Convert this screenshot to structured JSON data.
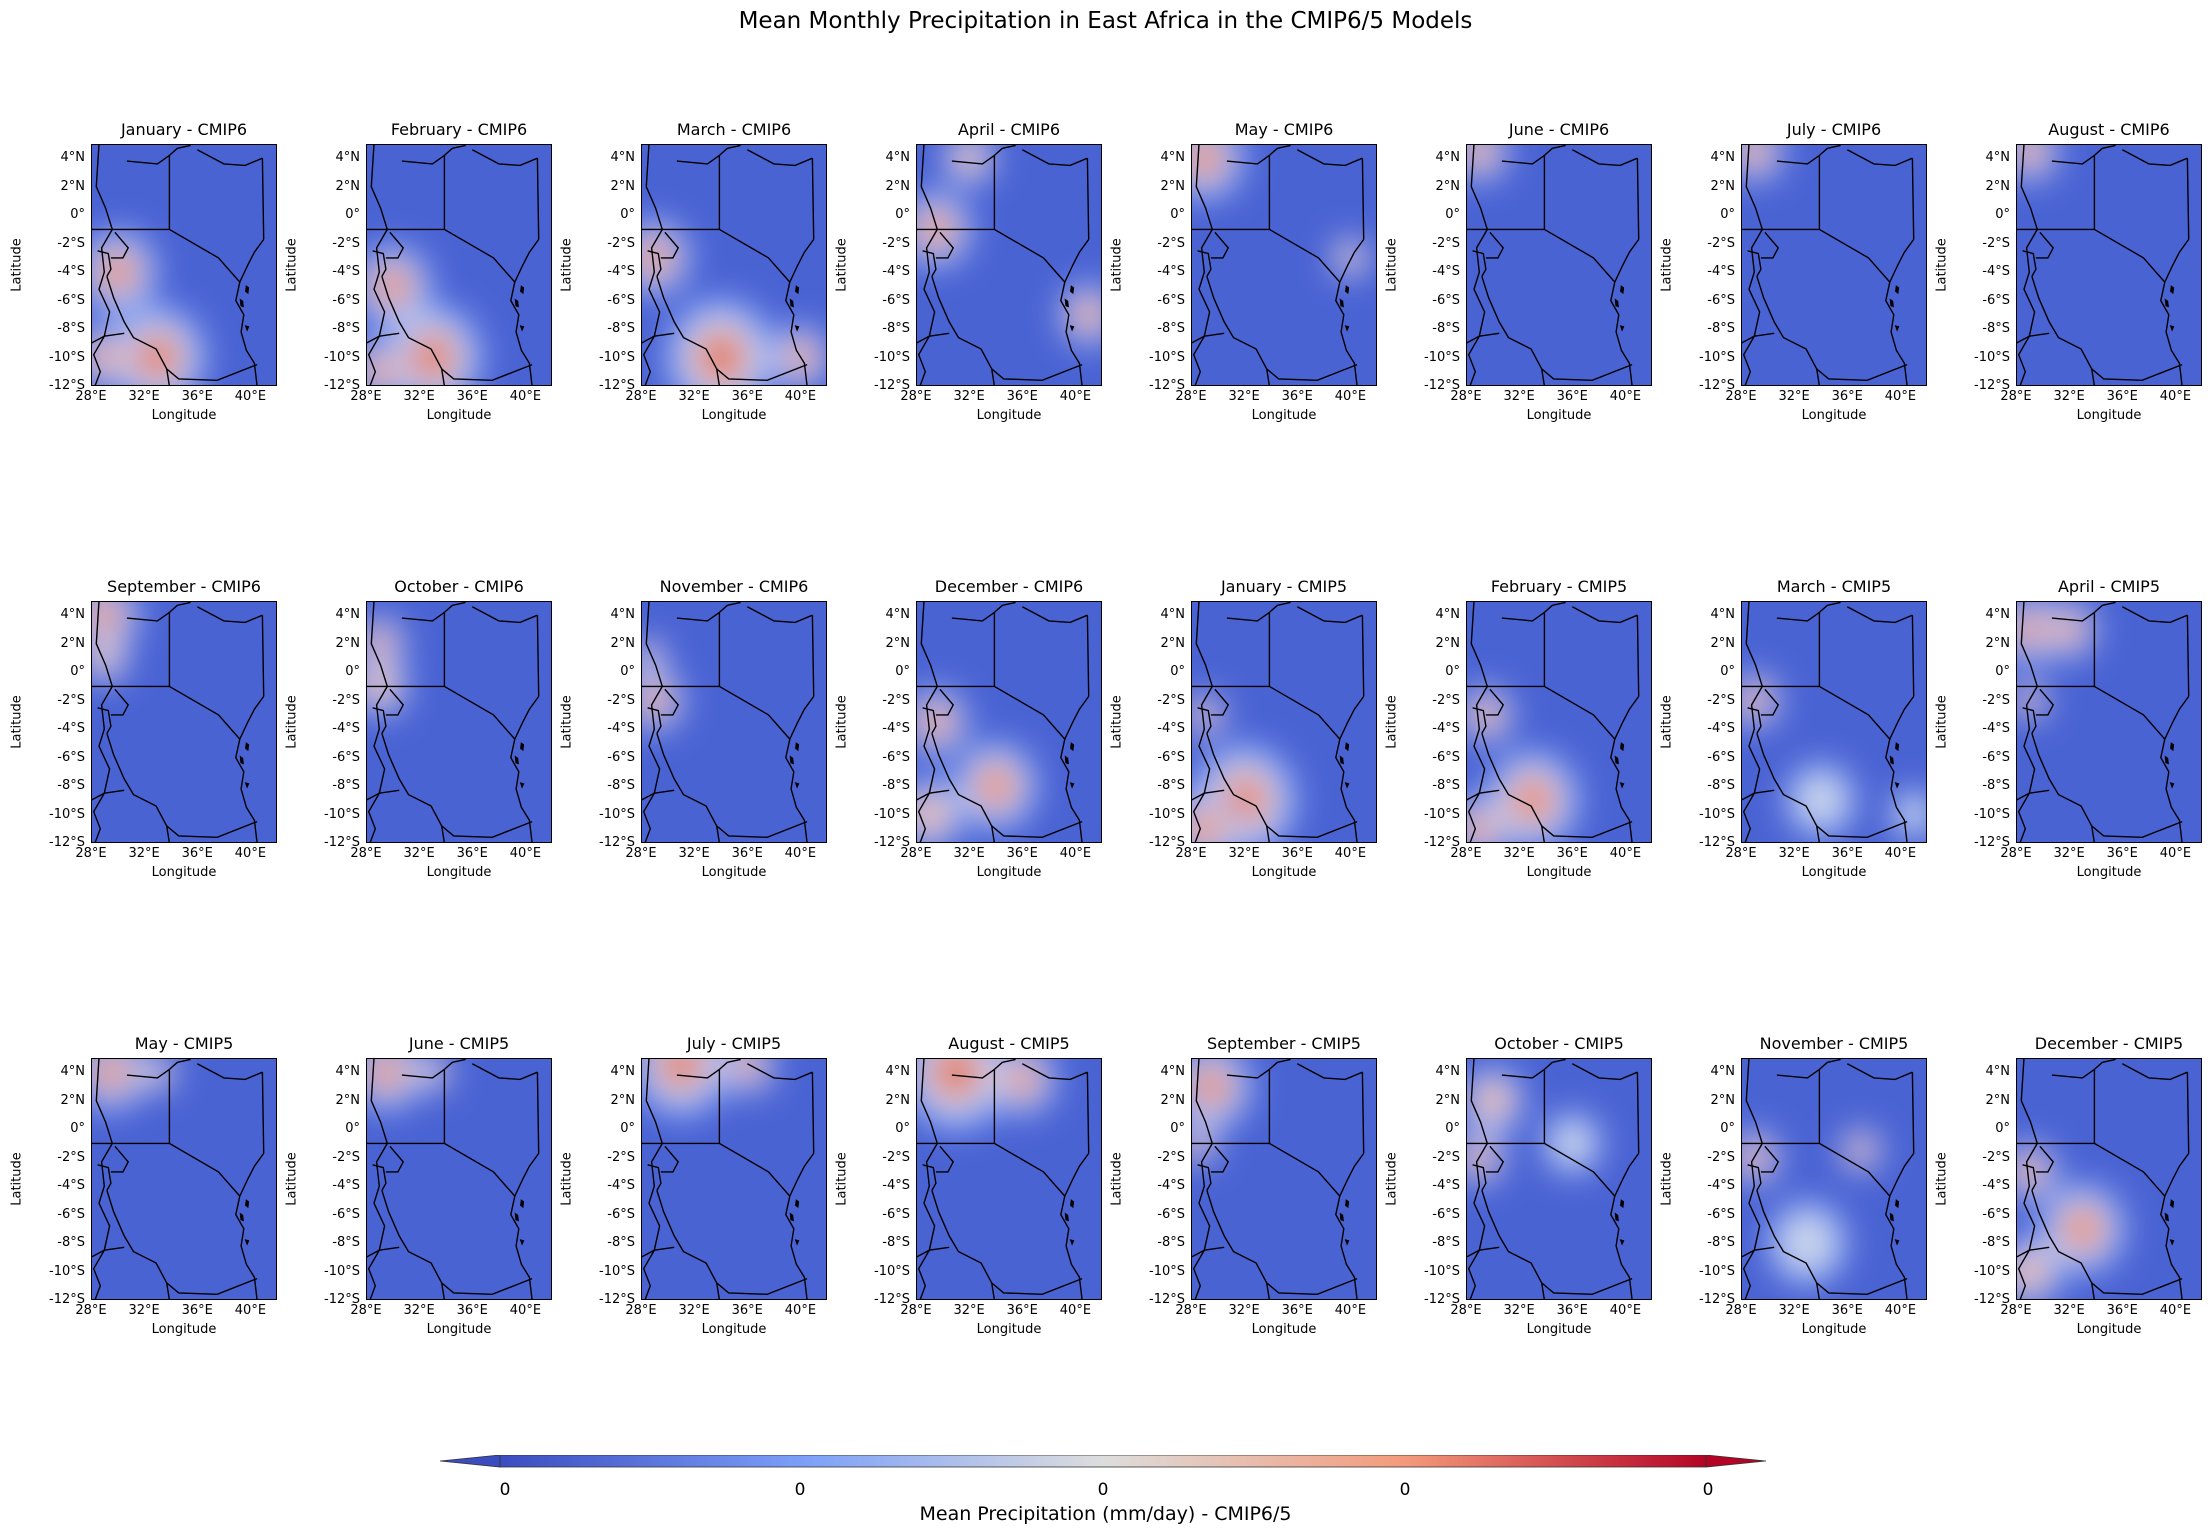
{
  "chart_data": {
    "type": "heatmap",
    "title": "Mean Monthly Precipitation in East Africa in the CMIP6/5 Models",
    "xlabel": "Longitude",
    "ylabel": "Latitude",
    "x_ticks": [
      "28°E",
      "32°E",
      "36°E",
      "40°E"
    ],
    "y_ticks": [
      "4°N",
      "2°N",
      "0°",
      "-2°S",
      "-4°S",
      "-6°S",
      "-8°S",
      "-10°S",
      "-12°S"
    ],
    "xlim": [
      28,
      42
    ],
    "ylim": [
      -12,
      5
    ],
    "colormap": "coolwarm",
    "colors": {
      "low": "#3b4cc0",
      "mid": "#dddddd",
      "high": "#b40426"
    },
    "colorbar": {
      "label": "Mean Precipitation (mm/day) - CMIP6/5",
      "ticks": [
        "0",
        "0",
        "0",
        "0",
        "0"
      ],
      "extend": "both"
    },
    "panels": [
      {
        "title": "January - CMIP6",
        "blobs": [
          [
            30,
            -4,
            2.5,
            0.95
          ],
          [
            33,
            -10,
            3,
            1.0
          ],
          [
            29,
            -10,
            2,
            0.85
          ]
        ]
      },
      {
        "title": "February - CMIP6",
        "blobs": [
          [
            30,
            -5,
            2.5,
            0.9
          ],
          [
            33,
            -10,
            3,
            1.05
          ],
          [
            29,
            -11,
            2,
            0.9
          ]
        ]
      },
      {
        "title": "March - CMIP6",
        "blobs": [
          [
            29,
            -3,
            2.2,
            1.0
          ],
          [
            34,
            -10,
            3.5,
            0.95
          ],
          [
            40,
            -10,
            2,
            0.85
          ]
        ]
      },
      {
        "title": "April - CMIP6",
        "blobs": [
          [
            29.5,
            -1,
            2.2,
            1.0
          ],
          [
            32,
            4,
            2,
            0.6
          ],
          [
            41,
            -7,
            2,
            0.8
          ]
        ]
      },
      {
        "title": "May - CMIP6",
        "blobs": [
          [
            29,
            4,
            2.5,
            0.95
          ],
          [
            40,
            -3,
            1.5,
            0.6
          ]
        ]
      },
      {
        "title": "June - CMIP6",
        "blobs": [
          [
            29,
            4.5,
            2,
            0.8
          ]
        ]
      },
      {
        "title": "July - CMIP6",
        "blobs": [
          [
            29,
            4.5,
            2,
            0.8
          ]
        ]
      },
      {
        "title": "August - CMIP6",
        "blobs": [
          [
            29,
            4.5,
            2,
            0.8
          ]
        ]
      },
      {
        "title": "September - CMIP6",
        "blobs": [
          [
            29,
            4,
            2.2,
            0.95
          ],
          [
            29,
            1,
            2,
            0.5
          ]
        ]
      },
      {
        "title": "October - CMIP6",
        "blobs": [
          [
            29,
            2,
            1.6,
            1.0
          ],
          [
            29,
            -1,
            2.2,
            0.6
          ]
        ]
      },
      {
        "title": "November - CMIP6",
        "blobs": [
          [
            29,
            -2,
            1.8,
            1.0
          ],
          [
            28.5,
            1,
            1.5,
            0.5
          ]
        ]
      },
      {
        "title": "December - CMIP6",
        "blobs": [
          [
            29.5,
            -3.5,
            2,
            0.95
          ],
          [
            34,
            -8,
            3,
            0.7
          ],
          [
            29,
            -10,
            2.5,
            0.65
          ]
        ]
      },
      {
        "title": "January - CMIP5",
        "blobs": [
          [
            29,
            -3,
            1.5,
            0.7
          ],
          [
            32,
            -9,
            3.5,
            0.85
          ],
          [
            29,
            -11,
            2.5,
            0.85
          ]
        ]
      },
      {
        "title": "February - CMIP5",
        "blobs": [
          [
            29.5,
            -3,
            1.8,
            0.85
          ],
          [
            33,
            -9,
            3.2,
            0.8
          ],
          [
            29,
            -11,
            2.2,
            0.75
          ]
        ]
      },
      {
        "title": "March - CMIP5",
        "blobs": [
          [
            29,
            -2,
            1.6,
            1.0
          ],
          [
            34,
            -9,
            3,
            0.45
          ],
          [
            41,
            -10,
            2,
            0.45
          ]
        ]
      },
      {
        "title": "April - CMIP5",
        "blobs": [
          [
            29,
            3,
            2,
            1.0
          ],
          [
            32,
            3,
            2,
            0.7
          ],
          [
            29,
            -2,
            1.4,
            0.7
          ]
        ]
      },
      {
        "title": "May - CMIP5",
        "blobs": [
          [
            29.5,
            4,
            2.3,
            0.95
          ],
          [
            33,
            4,
            1.5,
            0.55
          ]
        ]
      },
      {
        "title": "June - CMIP5",
        "blobs": [
          [
            29.5,
            4,
            2.3,
            0.95
          ],
          [
            33,
            4,
            1.5,
            0.55
          ]
        ]
      },
      {
        "title": "July - CMIP5",
        "blobs": [
          [
            31,
            4.5,
            3,
            1.0
          ],
          [
            36,
            4.5,
            2,
            0.7
          ]
        ]
      },
      {
        "title": "August - CMIP5",
        "blobs": [
          [
            31,
            4,
            3.3,
            1.05
          ],
          [
            36,
            3.5,
            2.3,
            0.8
          ]
        ]
      },
      {
        "title": "September - CMIP5",
        "blobs": [
          [
            29.5,
            3,
            2.5,
            1.0
          ],
          [
            28.5,
            -1,
            1.5,
            0.7
          ]
        ]
      },
      {
        "title": "October - CMIP5",
        "blobs": [
          [
            29,
            -2,
            1.6,
            1.0
          ],
          [
            30,
            2,
            2.5,
            0.55
          ],
          [
            36,
            -1,
            2.5,
            0.45
          ]
        ]
      },
      {
        "title": "November - CMIP5",
        "blobs": [
          [
            29,
            -2,
            1.6,
            1.0
          ],
          [
            37,
            -1.5,
            1.3,
            1.0
          ],
          [
            33,
            -8,
            3.5,
            0.4
          ]
        ]
      },
      {
        "title": "December - CMIP5",
        "blobs": [
          [
            29,
            -3,
            1.8,
            0.9
          ],
          [
            33,
            -7,
            3,
            0.75
          ],
          [
            29,
            -10,
            2.5,
            0.6
          ]
        ]
      }
    ]
  }
}
